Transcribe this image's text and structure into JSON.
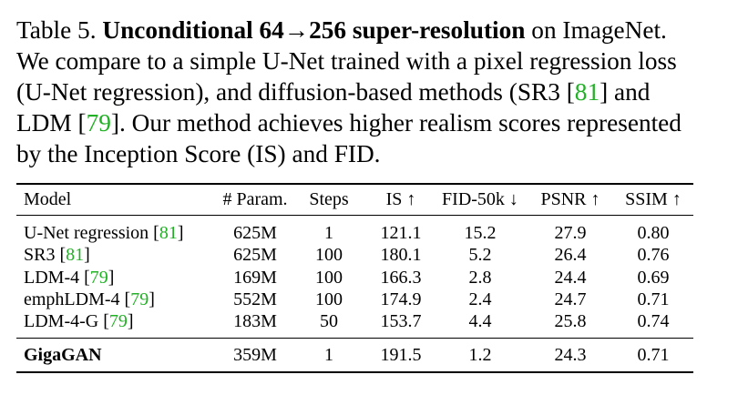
{
  "caption": {
    "table_label": "Table 5.",
    "bold_title": "Unconditional 64→256 super-resolution",
    "line1_rest": "on ImageNet.",
    "line2": "We compare to a simple U-Net trained with a pixel regression loss",
    "line3_pre": "(U-Net regression), and diffusion-based methods (SR3 [",
    "line3_ref": "81",
    "line3_post": "] and",
    "line4_pre": "LDM [",
    "line4_ref": "79",
    "line4_post": "]. Our method achieves higher realism scores represented",
    "line5": "by the Inception Score (IS) and FID."
  },
  "table": {
    "headers": {
      "model": "Model",
      "params": "# Param.",
      "steps": "Steps",
      "is": "IS ↑",
      "fid": "FID-50k ↓",
      "psnr": "PSNR ↑",
      "ssim": "SSIM ↑"
    },
    "rows": [
      {
        "model": "U-Net regression [",
        "ref": "81",
        "close": "]",
        "params": "625M",
        "steps": "1",
        "is": "121.1",
        "fid": "15.2",
        "psnr": "27.9",
        "ssim": "0.80"
      },
      {
        "model": "SR3 [",
        "ref": "81",
        "close": "]",
        "params": "625M",
        "steps": "100",
        "is": "180.1",
        "fid": "5.2",
        "psnr": "26.4",
        "ssim": "0.76"
      },
      {
        "model": "LDM-4 [",
        "ref": "79",
        "close": "]",
        "params": "169M",
        "steps": "100",
        "is": "166.3",
        "fid": "2.8",
        "psnr": "24.4",
        "ssim": "0.69"
      },
      {
        "model": "emphLDM-4 [",
        "ref": "79",
        "close": "]",
        "params": "552M",
        "steps": "100",
        "is": "174.9",
        "fid": "2.4",
        "psnr": "24.7",
        "ssim": "0.71"
      },
      {
        "model": "LDM-4-G [",
        "ref": "79",
        "close": "]",
        "params": "183M",
        "steps": "50",
        "is": "153.7",
        "fid": "4.4",
        "psnr": "25.8",
        "ssim": "0.74"
      }
    ],
    "ours": {
      "model": "GigaGAN",
      "params": "359M",
      "steps": "1",
      "is": "191.5",
      "fid": "1.2",
      "psnr": "24.3",
      "ssim": "0.71"
    }
  },
  "colors": {
    "reference_link": "#22b026",
    "text": "#000000"
  }
}
